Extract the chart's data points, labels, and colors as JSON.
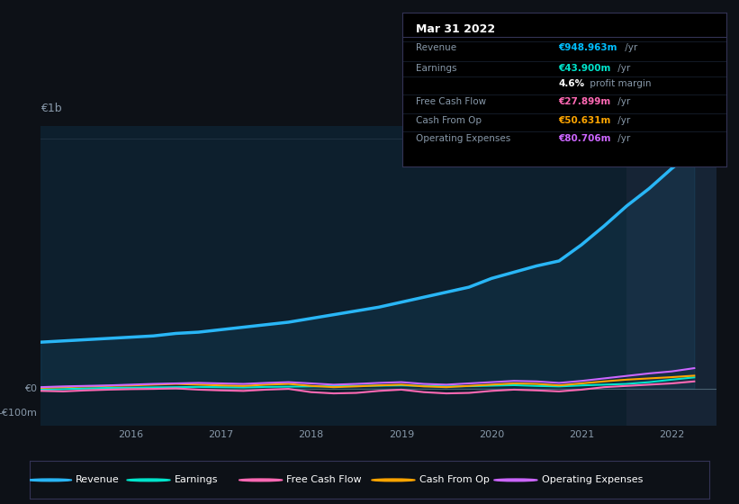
{
  "bg_color": "#0d1117",
  "chart_bg": "#0d1f2d",
  "chart_bg_highlight": "#162435",
  "title": "Mar 31 2022",
  "table": {
    "Revenue": {
      "value": "€948.963m /yr",
      "color": "#00bfff"
    },
    "Earnings": {
      "value": "€43.900m /yr",
      "color": "#00e5cc"
    },
    "profit_margin": {
      "value": "4.6% profit margin",
      "color": "#ffffff"
    },
    "Free Cash Flow": {
      "value": "€27.899m /yr",
      "color": "#ff69b4"
    },
    "Cash From Op": {
      "value": "€50.631m /yr",
      "color": "#ffa500"
    },
    "Operating Expenses": {
      "value": "€80.706m /yr",
      "color": "#cc66ff"
    }
  },
  "ylim": [
    -150,
    1050
  ],
  "ytick_labels": [
    "€0",
    "€1b"
  ],
  "y_extra_label": "-€100m",
  "xmin": 2015.0,
  "xmax": 2022.5,
  "highlight_x": 2021.5,
  "series": {
    "Revenue": {
      "color": "#29b6f6",
      "lw": 2.5,
      "x": [
        2015.0,
        2015.25,
        2015.5,
        2015.75,
        2016.0,
        2016.25,
        2016.5,
        2016.75,
        2017.0,
        2017.25,
        2017.5,
        2017.75,
        2018.0,
        2018.25,
        2018.5,
        2018.75,
        2019.0,
        2019.25,
        2019.5,
        2019.75,
        2020.0,
        2020.25,
        2020.5,
        2020.75,
        2021.0,
        2021.25,
        2021.5,
        2021.75,
        2022.0,
        2022.25
      ],
      "y": [
        185,
        190,
        195,
        200,
        205,
        210,
        220,
        225,
        235,
        245,
        255,
        265,
        280,
        295,
        310,
        325,
        345,
        365,
        385,
        405,
        440,
        465,
        490,
        510,
        575,
        650,
        730,
        800,
        880,
        950
      ]
    },
    "Earnings": {
      "color": "#00e5cc",
      "lw": 1.5,
      "x": [
        2015.0,
        2015.25,
        2015.5,
        2015.75,
        2016.0,
        2016.25,
        2016.5,
        2016.75,
        2017.0,
        2017.25,
        2017.5,
        2017.75,
        2018.0,
        2018.25,
        2018.5,
        2018.75,
        2019.0,
        2019.25,
        2019.5,
        2019.75,
        2020.0,
        2020.25,
        2020.5,
        2020.75,
        2021.0,
        2021.25,
        2021.5,
        2021.75,
        2022.0,
        2022.25
      ],
      "y": [
        -5,
        -3,
        0,
        2,
        3,
        4,
        5,
        6,
        5,
        4,
        6,
        7,
        8,
        9,
        10,
        11,
        12,
        10,
        8,
        9,
        11,
        13,
        10,
        8,
        12,
        15,
        18,
        25,
        35,
        44
      ]
    },
    "Free Cash Flow": {
      "color": "#ff69b4",
      "lw": 1.5,
      "x": [
        2015.0,
        2015.25,
        2015.5,
        2015.75,
        2016.0,
        2016.25,
        2016.5,
        2016.75,
        2017.0,
        2017.25,
        2017.5,
        2017.75,
        2018.0,
        2018.25,
        2018.5,
        2018.75,
        2019.0,
        2019.25,
        2019.5,
        2019.75,
        2020.0,
        2020.25,
        2020.5,
        2020.75,
        2021.0,
        2021.25,
        2021.5,
        2021.75,
        2022.0,
        2022.25
      ],
      "y": [
        -10,
        -12,
        -8,
        -5,
        -3,
        -2,
        0,
        -5,
        -8,
        -10,
        -5,
        -2,
        -15,
        -20,
        -18,
        -10,
        -5,
        -15,
        -20,
        -18,
        -10,
        -5,
        -8,
        -12,
        -5,
        5,
        10,
        15,
        20,
        28
      ]
    },
    "Cash From Op": {
      "color": "#ffa500",
      "lw": 1.5,
      "x": [
        2015.0,
        2015.25,
        2015.5,
        2015.75,
        2016.0,
        2016.25,
        2016.5,
        2016.75,
        2017.0,
        2017.25,
        2017.5,
        2017.75,
        2018.0,
        2018.25,
        2018.5,
        2018.75,
        2019.0,
        2019.25,
        2019.5,
        2019.75,
        2020.0,
        2020.25,
        2020.5,
        2020.75,
        2021.0,
        2021.25,
        2021.5,
        2021.75,
        2022.0,
        2022.25
      ],
      "y": [
        2,
        5,
        8,
        10,
        12,
        15,
        18,
        15,
        12,
        10,
        15,
        18,
        10,
        5,
        8,
        12,
        15,
        8,
        5,
        10,
        15,
        20,
        18,
        12,
        20,
        28,
        35,
        40,
        45,
        51
      ]
    },
    "Operating Expenses": {
      "color": "#cc66ff",
      "lw": 1.5,
      "x": [
        2015.0,
        2015.25,
        2015.5,
        2015.75,
        2016.0,
        2016.25,
        2016.5,
        2016.75,
        2017.0,
        2017.25,
        2017.5,
        2017.75,
        2018.0,
        2018.25,
        2018.5,
        2018.75,
        2019.0,
        2019.25,
        2019.5,
        2019.75,
        2020.0,
        2020.25,
        2020.5,
        2020.75,
        2021.0,
        2021.25,
        2021.5,
        2021.75,
        2022.0,
        2022.25
      ],
      "y": [
        5,
        8,
        10,
        12,
        15,
        18,
        20,
        22,
        20,
        18,
        22,
        25,
        20,
        15,
        18,
        22,
        25,
        18,
        15,
        20,
        25,
        30,
        28,
        22,
        30,
        40,
        50,
        60,
        68,
        81
      ]
    }
  },
  "legend_items": [
    {
      "label": "Revenue",
      "color": "#29b6f6"
    },
    {
      "label": "Earnings",
      "color": "#00e5cc"
    },
    {
      "label": "Free Cash Flow",
      "color": "#ff69b4"
    },
    {
      "label": "Cash From Op",
      "color": "#ffa500"
    },
    {
      "label": "Operating Expenses",
      "color": "#cc66ff"
    }
  ],
  "xticks": [
    2016,
    2017,
    2018,
    2019,
    2020,
    2021,
    2022
  ],
  "xtick_labels": [
    "2016",
    "2017",
    "2018",
    "2019",
    "2020",
    "2021",
    "2022"
  ],
  "zero_line_color": "#4a6070",
  "grid_color": "#1e3040",
  "text_color": "#8899aa",
  "white": "#ffffff",
  "label_fontsize": 9,
  "tick_fontsize": 8
}
